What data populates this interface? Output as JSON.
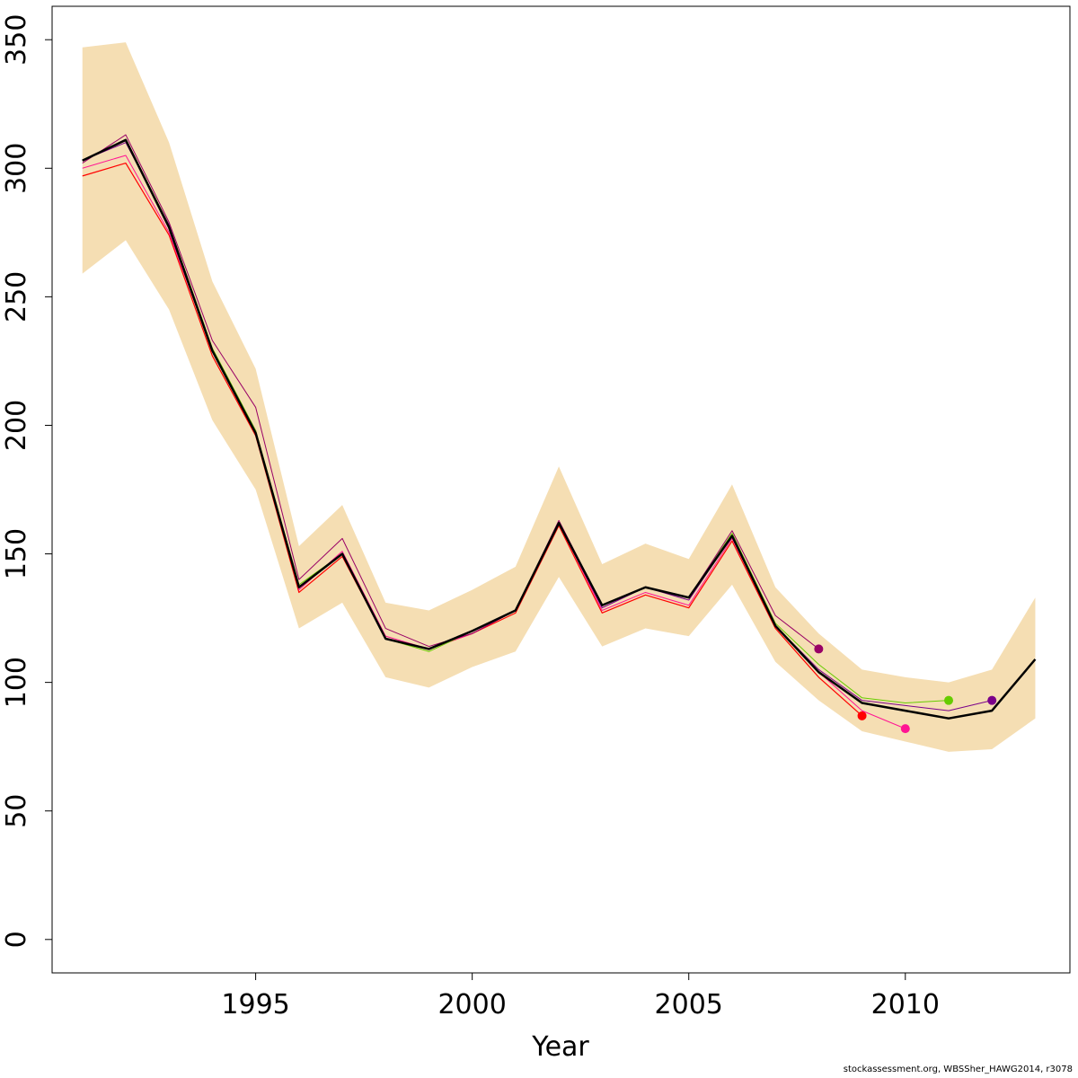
{
  "chart_data": {
    "type": "line",
    "xlabel": "Year",
    "ylabel": "",
    "xlim": [
      1990.3,
      2013.8
    ],
    "ylim": [
      -13,
      363
    ],
    "xticks": [
      1995,
      2000,
      2005,
      2010
    ],
    "yticks": [
      0,
      50,
      100,
      150,
      200,
      250,
      300,
      350
    ],
    "band": {
      "fill": "#f5deb3",
      "x": [
        1991,
        1992,
        1993,
        1994,
        1995,
        1996,
        1997,
        1998,
        1999,
        2000,
        2001,
        2002,
        2003,
        2004,
        2005,
        2006,
        2007,
        2008,
        2009,
        2010,
        2011,
        2012,
        2013
      ],
      "upper": [
        347,
        349,
        310,
        256,
        222,
        153,
        169,
        131,
        128,
        136,
        145,
        184,
        146,
        154,
        148,
        177,
        137,
        119,
        105,
        102,
        100,
        105,
        133
      ],
      "lower": [
        259,
        272,
        245,
        202,
        175,
        121,
        131,
        102,
        98,
        106,
        112,
        141,
        114,
        121,
        118,
        138,
        108,
        93,
        81,
        77,
        73,
        74,
        86
      ]
    },
    "series": [
      {
        "color": "#ff0000",
        "width": 1.2,
        "x": [
          1991,
          1992,
          1993,
          1994,
          1995,
          1996,
          1997,
          1998,
          1999,
          2000,
          2001,
          2002,
          2003,
          2004,
          2005,
          2006,
          2007,
          2008,
          2009
        ],
        "values": [
          297,
          302,
          274,
          227,
          196,
          135,
          149,
          117,
          113,
          119,
          127,
          161,
          127,
          134,
          129,
          155,
          121,
          102,
          87
        ],
        "end_point": true
      },
      {
        "color": "#ff1493",
        "width": 1.0,
        "x": [
          1991,
          1992,
          1993,
          1994,
          1995,
          1996,
          1997,
          1998,
          1999,
          2000,
          2001,
          2002,
          2003,
          2004,
          2005,
          2006,
          2007,
          2008,
          2009,
          2010
        ],
        "values": [
          300,
          305,
          275,
          229,
          198,
          136,
          151,
          118,
          113,
          119,
          128,
          162,
          128,
          135,
          130,
          156,
          122,
          104,
          89,
          82
        ],
        "end_point": true
      },
      {
        "color": "#66cc00",
        "width": 1.0,
        "x": [
          1991,
          1992,
          1993,
          1994,
          1995,
          1996,
          1997,
          1998,
          1999,
          2000,
          2001,
          2002,
          2003,
          2004,
          2005,
          2006,
          2007,
          2008,
          2009,
          2010,
          2011
        ],
        "values": [
          303,
          311,
          278,
          230,
          198,
          138,
          150,
          117,
          112,
          120,
          128,
          162,
          130,
          137,
          133,
          158,
          123,
          107,
          94,
          92,
          93
        ],
        "end_point": true
      },
      {
        "color": "#990066",
        "width": 1.0,
        "x": [
          1991,
          1992,
          1993,
          1994,
          1995,
          1996,
          1997,
          1998,
          1999,
          2000,
          2001,
          2002,
          2003,
          2004,
          2005,
          2006,
          2007,
          2008
        ],
        "values": [
          302,
          313,
          279,
          233,
          207,
          140,
          156,
          121,
          114,
          119,
          128,
          163,
          130,
          137,
          133,
          159,
          126,
          113
        ],
        "end_point": true
      },
      {
        "color": "#7a008a",
        "width": 1.0,
        "x": [
          1991,
          1992,
          1993,
          1994,
          1995,
          1996,
          1997,
          1998,
          1999,
          2000,
          2001,
          2002,
          2003,
          2004,
          2005,
          2006,
          2007,
          2008,
          2009,
          2010,
          2011,
          2012
        ],
        "values": [
          303,
          310,
          278,
          229,
          197,
          137,
          150,
          117,
          113,
          120,
          128,
          162,
          129,
          137,
          132,
          157,
          122,
          105,
          93,
          91,
          89,
          93
        ],
        "end_point": true
      },
      {
        "color": "#000000",
        "width": 2.5,
        "x": [
          1991,
          1992,
          1993,
          1994,
          1995,
          1996,
          1997,
          1998,
          1999,
          2000,
          2001,
          2002,
          2003,
          2004,
          2005,
          2006,
          2007,
          2008,
          2009,
          2010,
          2011,
          2012,
          2013
        ],
        "values": [
          303,
          311,
          277,
          229,
          197,
          137,
          150,
          117,
          113,
          120,
          128,
          162,
          130,
          137,
          133,
          157,
          122,
          104,
          92,
          89,
          86,
          89,
          109
        ],
        "end_point": false
      }
    ]
  },
  "credit": "stockassessment.org, WBSSher_HAWG2014, r3078"
}
